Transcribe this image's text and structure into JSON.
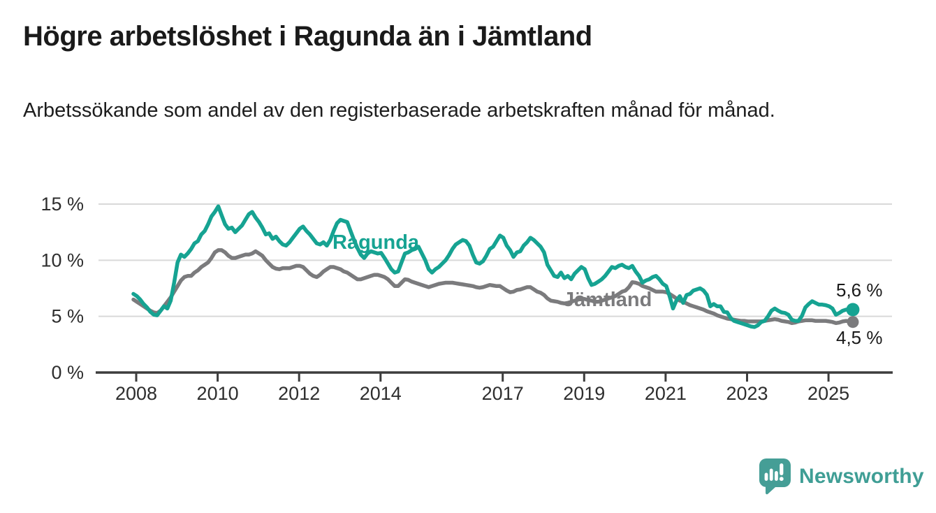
{
  "header": {
    "title": "Högre arbetslöshet i Ragunda än i Jämtland",
    "subtitle": "Arbetssökande som andel av den registerbaserade arbetskraften månad för månad."
  },
  "chart_data": {
    "type": "line",
    "frequency": "monthly",
    "x_start": "2008-01",
    "x_end": "2025-09",
    "unit": "%",
    "ylim": [
      0,
      15
    ],
    "grid": "horizontal-gridlines-at-5-10-15",
    "legend_position": "inline-labels-on-lines",
    "y_ticks": [
      0,
      5,
      10,
      15
    ],
    "y_tick_labels": [
      "0 %",
      "5 %",
      "10 %",
      "15 %"
    ],
    "x_tick_years": [
      2008,
      2010,
      2012,
      2014,
      2017,
      2019,
      2021,
      2023,
      2025
    ],
    "x_tick_labels": [
      "2008",
      "2010",
      "2012",
      "2014",
      "2017",
      "2019",
      "2021",
      "2023",
      "2025"
    ],
    "series": [
      {
        "name": "Ragunda",
        "color": "#16a392",
        "end_value": 5.6,
        "end_label": "5,6 %",
        "values": [
          7.0,
          6.8,
          6.5,
          6.1,
          5.8,
          5.4,
          5.15,
          5.1,
          5.5,
          5.9,
          5.7,
          6.4,
          8.0,
          9.8,
          10.5,
          10.3,
          10.6,
          11.0,
          11.5,
          11.7,
          12.3,
          12.6,
          13.2,
          13.9,
          14.3,
          14.8,
          14.0,
          13.2,
          12.8,
          12.9,
          12.5,
          12.8,
          13.1,
          13.6,
          14.1,
          14.3,
          13.8,
          13.4,
          12.9,
          12.3,
          12.4,
          11.9,
          12.1,
          11.7,
          11.4,
          11.3,
          11.6,
          12.0,
          12.4,
          12.8,
          13.0,
          12.6,
          12.3,
          11.9,
          11.5,
          11.4,
          11.6,
          11.3,
          11.8,
          12.6,
          13.3,
          13.6,
          13.5,
          13.4,
          12.6,
          11.8,
          11.1,
          10.5,
          10.2,
          10.6,
          10.8,
          10.7,
          10.6,
          10.65,
          10.2,
          9.7,
          9.2,
          8.9,
          9.0,
          9.8,
          10.6,
          10.7,
          10.9,
          11.0,
          11.2,
          10.6,
          10.0,
          9.2,
          8.9,
          9.2,
          9.4,
          9.7,
          10.0,
          10.45,
          11.0,
          11.4,
          11.6,
          11.8,
          11.7,
          11.3,
          10.5,
          9.8,
          9.7,
          9.9,
          10.4,
          11.0,
          11.2,
          11.7,
          12.2,
          12.0,
          11.3,
          10.9,
          10.3,
          10.7,
          10.8,
          11.3,
          11.6,
          12.0,
          11.8,
          11.5,
          11.2,
          10.7,
          9.6,
          9.1,
          8.6,
          8.5,
          8.9,
          8.4,
          8.6,
          8.3,
          8.8,
          9.1,
          9.4,
          9.2,
          8.4,
          7.8,
          7.9,
          8.1,
          8.3,
          8.6,
          9.0,
          9.4,
          9.3,
          9.5,
          9.6,
          9.4,
          9.3,
          9.5,
          9.0,
          8.6,
          8.0,
          8.2,
          8.3,
          8.5,
          8.6,
          8.3,
          7.9,
          7.7,
          6.8,
          5.7,
          6.4,
          6.8,
          6.2,
          6.9,
          7.0,
          7.3,
          7.4,
          7.5,
          7.3,
          6.9,
          5.9,
          6.1,
          5.9,
          5.9,
          5.4,
          5.35,
          4.85,
          4.6,
          4.5,
          4.4,
          4.3,
          4.2,
          4.1,
          4.05,
          4.2,
          4.5,
          4.6,
          5.0,
          5.5,
          5.7,
          5.5,
          5.35,
          5.3,
          5.15,
          4.7,
          4.6,
          4.6,
          5.05,
          5.8,
          6.1,
          6.35,
          6.2,
          6.05,
          6.05,
          6.0,
          5.9,
          5.7,
          5.15,
          5.3,
          5.5,
          5.6,
          5.6,
          5.6
        ]
      },
      {
        "name": "Jämtland",
        "color": "#7b7b7d",
        "end_value": 4.5,
        "end_label": "4,5 %",
        "values": [
          6.5,
          6.3,
          6.1,
          5.9,
          5.7,
          5.5,
          5.35,
          5.3,
          5.5,
          5.9,
          6.3,
          6.7,
          7.2,
          7.7,
          8.2,
          8.5,
          8.6,
          8.6,
          8.9,
          9.1,
          9.4,
          9.6,
          9.8,
          10.2,
          10.7,
          10.9,
          10.9,
          10.7,
          10.4,
          10.2,
          10.2,
          10.3,
          10.4,
          10.5,
          10.5,
          10.6,
          10.8,
          10.6,
          10.4,
          10.0,
          9.7,
          9.4,
          9.25,
          9.2,
          9.3,
          9.3,
          9.3,
          9.4,
          9.5,
          9.5,
          9.4,
          9.1,
          8.8,
          8.6,
          8.5,
          8.7,
          9.0,
          9.2,
          9.4,
          9.4,
          9.3,
          9.2,
          9.0,
          8.9,
          8.7,
          8.5,
          8.3,
          8.3,
          8.4,
          8.5,
          8.6,
          8.7,
          8.7,
          8.6,
          8.5,
          8.3,
          8.0,
          7.7,
          7.7,
          8.0,
          8.3,
          8.25,
          8.1,
          8.0,
          7.9,
          7.8,
          7.7,
          7.6,
          7.7,
          7.8,
          7.9,
          7.95,
          8.0,
          8.0,
          8.0,
          7.95,
          7.9,
          7.85,
          7.8,
          7.75,
          7.7,
          7.6,
          7.55,
          7.6,
          7.7,
          7.8,
          7.75,
          7.7,
          7.7,
          7.5,
          7.3,
          7.15,
          7.2,
          7.35,
          7.4,
          7.5,
          7.6,
          7.6,
          7.4,
          7.2,
          7.1,
          6.9,
          6.6,
          6.4,
          6.35,
          6.3,
          6.2,
          6.15,
          6.2,
          6.3,
          6.4,
          6.5,
          6.6,
          6.55,
          6.45,
          6.4,
          6.3,
          6.3,
          6.4,
          6.5,
          6.6,
          6.7,
          6.8,
          7.0,
          7.2,
          7.3,
          7.6,
          8.05,
          8.0,
          7.9,
          7.7,
          7.6,
          7.5,
          7.35,
          7.2,
          7.2,
          7.2,
          7.15,
          7.0,
          6.8,
          6.6,
          6.4,
          6.3,
          6.15,
          6.0,
          5.9,
          5.8,
          5.7,
          5.6,
          5.45,
          5.35,
          5.25,
          5.1,
          5.0,
          4.9,
          4.8,
          4.75,
          4.7,
          4.65,
          4.6,
          4.6,
          4.55,
          4.55,
          4.55,
          4.55,
          4.55,
          4.6,
          4.65,
          4.7,
          4.75,
          4.7,
          4.6,
          4.55,
          4.5,
          4.4,
          4.45,
          4.55,
          4.6,
          4.65,
          4.65,
          4.65,
          4.6,
          4.6,
          4.6,
          4.6,
          4.55,
          4.5,
          4.4,
          4.45,
          4.55,
          4.6,
          4.55,
          4.5
        ]
      }
    ],
    "colors": {
      "gridline": "#d9d9d9",
      "axis": "#3d3d3d",
      "tick_text": "#2e2e2e",
      "end_label_text": "#1a1a1a"
    }
  },
  "footer": {
    "brand": "Newsworthy",
    "brand_color": "#3f9e95"
  }
}
